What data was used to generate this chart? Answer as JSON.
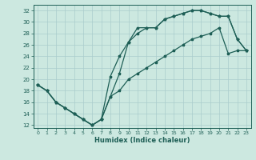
{
  "xlabel": "Humidex (Indice chaleur)",
  "xlim": [
    -0.5,
    23.5
  ],
  "ylim": [
    11.5,
    33.0
  ],
  "xticks": [
    0,
    1,
    2,
    3,
    4,
    5,
    6,
    7,
    8,
    9,
    10,
    11,
    12,
    13,
    14,
    15,
    16,
    17,
    18,
    19,
    20,
    21,
    22,
    23
  ],
  "yticks": [
    12,
    14,
    16,
    18,
    20,
    22,
    24,
    26,
    28,
    30,
    32
  ],
  "bg_color": "#cce8e0",
  "line_color": "#1e5f56",
  "grid_color": "#aacccc",
  "line1_x": [
    0,
    1,
    2,
    3,
    4,
    5,
    6,
    7,
    8,
    9,
    10,
    11,
    12,
    13,
    14,
    15,
    16,
    17,
    18,
    19,
    20,
    21,
    22,
    23
  ],
  "line1_y": [
    19,
    18,
    16,
    15,
    14,
    13,
    12,
    13,
    17,
    21,
    26.5,
    29,
    29,
    29,
    30.5,
    31,
    31.5,
    32,
    32,
    31.5,
    31,
    31,
    27,
    25
  ],
  "line2_x": [
    0,
    1,
    2,
    3,
    4,
    5,
    6,
    7,
    8,
    9,
    10,
    11,
    12,
    13,
    14,
    15,
    16,
    17,
    18,
    19,
    20,
    21,
    22,
    23
  ],
  "line2_y": [
    19,
    18,
    16,
    15,
    14,
    13,
    12,
    13,
    20.5,
    24,
    26.5,
    28,
    29,
    29,
    30.5,
    31,
    31.5,
    32,
    32,
    31.5,
    31,
    31,
    27,
    25
  ],
  "line3_x": [
    0,
    1,
    2,
    3,
    4,
    5,
    6,
    7,
    8,
    9,
    10,
    11,
    12,
    13,
    14,
    15,
    16,
    17,
    18,
    19,
    20,
    21,
    22,
    23
  ],
  "line3_y": [
    19,
    18,
    16,
    15,
    14,
    13,
    12,
    13,
    17,
    18,
    20,
    21,
    22,
    23,
    24,
    25,
    26,
    27,
    27.5,
    28,
    29,
    24.5,
    25,
    25
  ]
}
